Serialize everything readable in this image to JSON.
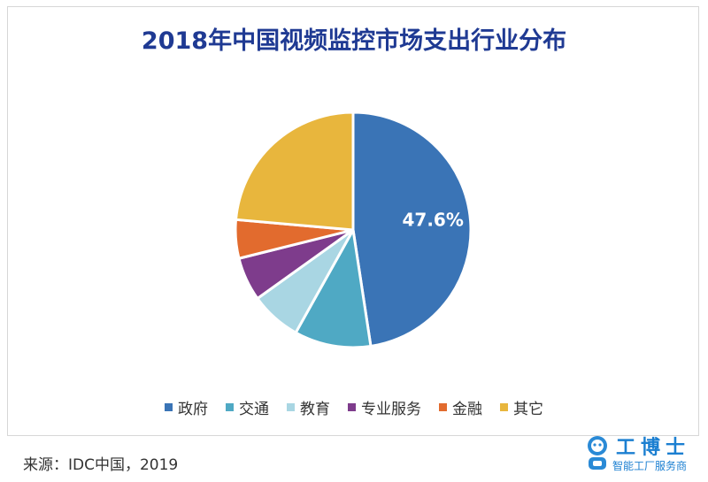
{
  "chart_data": {
    "type": "pie",
    "title": "2018年中国视频监控市场支出行业分布",
    "categories": [
      "政府",
      "交通",
      "教育",
      "专业服务",
      "金融",
      "其它"
    ],
    "values": [
      47.6,
      10.5,
      7.0,
      6.0,
      5.3,
      23.6
    ],
    "data_labels": [
      "47.6%",
      "",
      "",
      "",
      "",
      ""
    ],
    "colors": [
      "#3a74b6",
      "#4fa9c4",
      "#a9d6e3",
      "#7e3c8c",
      "#e26b2e",
      "#e8b63d"
    ],
    "legend_position": "bottom"
  },
  "source": "来源：IDC中国，2019",
  "watermark": {
    "name": "工博士",
    "tagline": "智能工厂服务商"
  }
}
